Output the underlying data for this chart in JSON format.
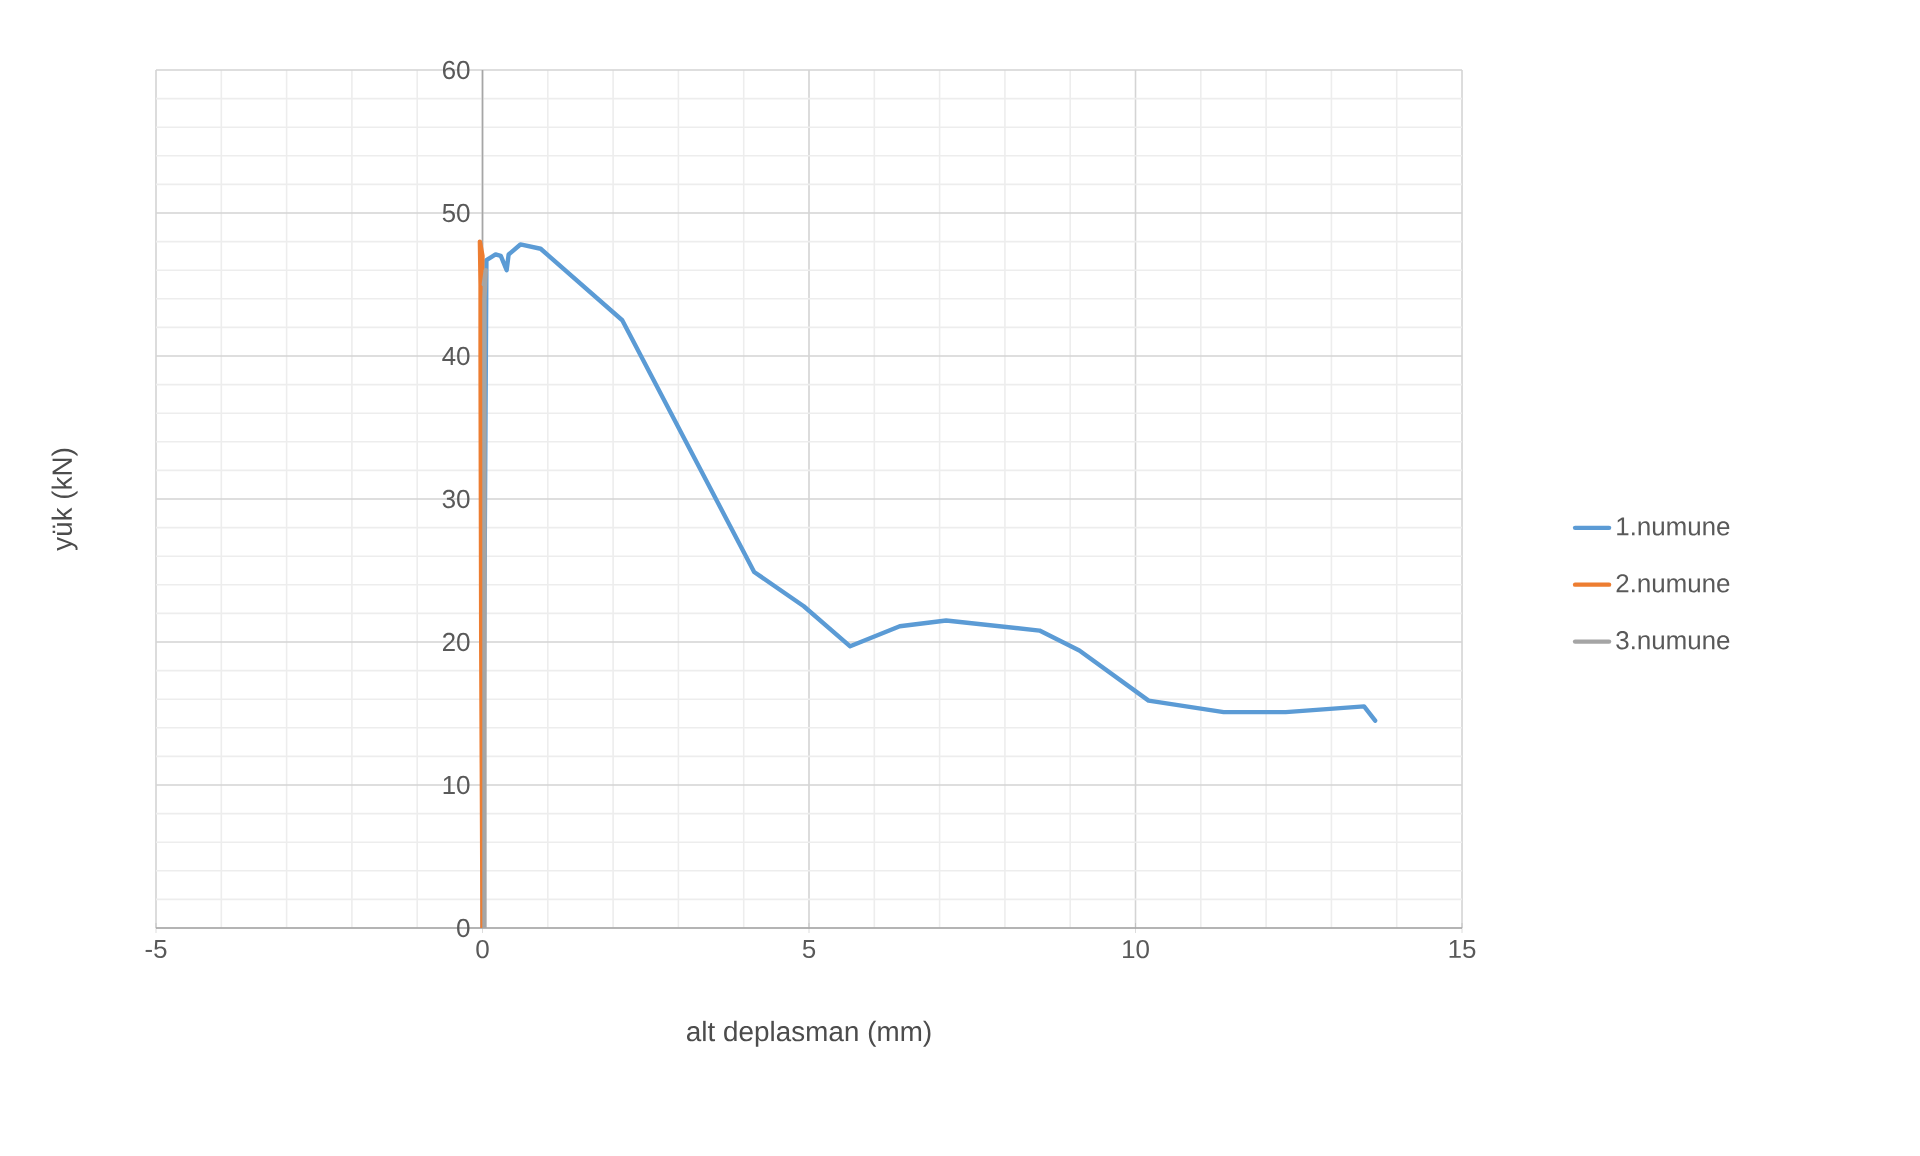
{
  "chart_data": {
    "type": "line",
    "xlabel": "alt deplasman (mm)",
    "ylabel": "yük (kN)",
    "xlim": [
      -5,
      15
    ],
    "xticks": [
      -5,
      0,
      5,
      10,
      15
    ],
    "ylim": [
      0,
      60
    ],
    "yticks": [
      0,
      10,
      20,
      30,
      40,
      50,
      60
    ],
    "grid": true,
    "legend": "right",
    "marker": "none",
    "line_style": "solid",
    "series": [
      {
        "name": "1.numune",
        "color": "#5b9bd5",
        "x": [
          0,
          0.06,
          0.2,
          0.28,
          0.37,
          0.4,
          0.58,
          0.89,
          2.14,
          4.16,
          4.92,
          5.63,
          6.39,
          7.1,
          8.53,
          9.14,
          10.2,
          11.35,
          12.3,
          13.5,
          13.67
        ],
        "values": [
          0,
          46.7,
          47.1,
          47.0,
          46.0,
          47.1,
          47.8,
          47.5,
          42.5,
          24.9,
          22.5,
          19.7,
          21.1,
          21.5,
          20.8,
          19.4,
          15.9,
          15.1,
          15.1,
          15.5,
          14.5
        ]
      },
      {
        "name": "2.numune",
        "color": "#ed7d31",
        "x": [
          0,
          -0.02,
          -0.03,
          -0.03,
          -0.04,
          0.0,
          -0.01
        ],
        "values": [
          0,
          20,
          40,
          45,
          48,
          47,
          45
        ]
      },
      {
        "name": "3.numune",
        "color": "#a5a5a5",
        "x": [
          0.03,
          0.03,
          0.05,
          0.02
        ],
        "values": [
          0,
          44,
          46,
          45
        ]
      }
    ]
  }
}
